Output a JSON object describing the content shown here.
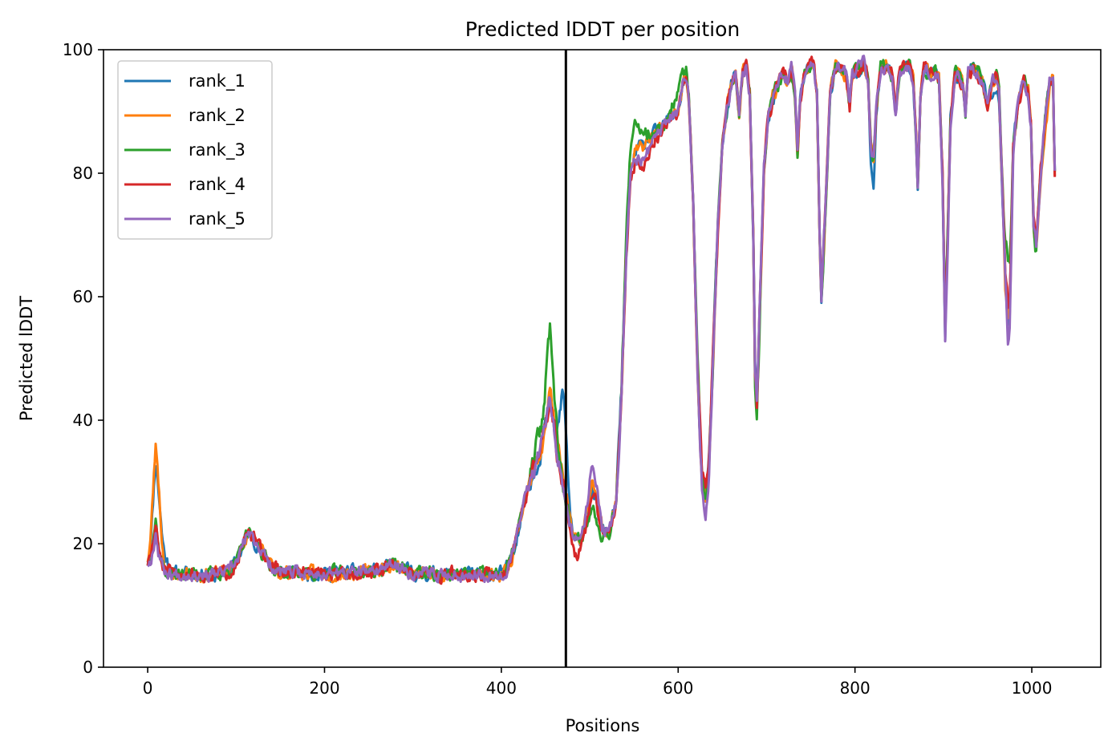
{
  "chart_data": {
    "type": "line",
    "title": "Predicted lDDT per position",
    "xlabel": "Positions",
    "ylabel": "Predicted lDDT",
    "xlim": [
      -50,
      1078
    ],
    "ylim": [
      0,
      100
    ],
    "xticks": [
      0,
      200,
      400,
      600,
      800,
      1000
    ],
    "yticks": [
      0,
      20,
      40,
      60,
      80,
      100
    ],
    "grid": false,
    "legend_position": "top-left",
    "vline": {
      "x": 473,
      "color": "#000000"
    },
    "n_positions": 1027,
    "base_profile": [
      [
        0,
        17
      ],
      [
        3,
        18
      ],
      [
        6,
        21
      ],
      [
        9,
        24
      ],
      [
        12,
        20
      ],
      [
        16,
        17
      ],
      [
        20,
        15.5
      ],
      [
        30,
        15
      ],
      [
        50,
        15.2
      ],
      [
        70,
        15
      ],
      [
        90,
        15.3
      ],
      [
        100,
        17
      ],
      [
        106,
        19
      ],
      [
        112,
        21.5
      ],
      [
        118,
        21
      ],
      [
        124,
        20
      ],
      [
        132,
        18
      ],
      [
        140,
        16.5
      ],
      [
        150,
        15.3
      ],
      [
        200,
        15.2
      ],
      [
        250,
        15.4
      ],
      [
        280,
        16.5
      ],
      [
        300,
        15.2
      ],
      [
        350,
        15
      ],
      [
        395,
        15
      ],
      [
        405,
        15.5
      ],
      [
        412,
        18
      ],
      [
        420,
        23
      ],
      [
        428,
        28
      ],
      [
        435,
        31
      ],
      [
        442,
        34
      ],
      [
        450,
        39
      ],
      [
        455,
        43
      ],
      [
        460,
        38
      ],
      [
        465,
        33
      ],
      [
        470,
        30
      ],
      [
        474,
        27
      ],
      [
        478,
        23
      ],
      [
        482,
        20
      ],
      [
        490,
        21
      ],
      [
        497,
        24
      ],
      [
        503,
        28
      ],
      [
        508,
        26
      ],
      [
        514,
        22
      ],
      [
        522,
        22
      ],
      [
        530,
        27
      ],
      [
        536,
        45
      ],
      [
        541,
        66
      ],
      [
        546,
        80
      ],
      [
        552,
        84
      ],
      [
        560,
        84
      ],
      [
        570,
        86
      ],
      [
        580,
        87
      ],
      [
        590,
        89
      ],
      [
        600,
        90
      ],
      [
        605,
        94
      ],
      [
        609,
        96
      ],
      [
        612,
        92
      ],
      [
        617,
        75
      ],
      [
        622,
        48
      ],
      [
        627,
        30
      ],
      [
        631,
        27
      ],
      [
        635,
        33
      ],
      [
        640,
        52
      ],
      [
        645,
        72
      ],
      [
        650,
        84
      ],
      [
        656,
        91
      ],
      [
        661,
        95
      ],
      [
        665,
        96
      ],
      [
        669,
        90
      ],
      [
        673,
        96
      ],
      [
        677,
        97
      ],
      [
        681,
        93
      ],
      [
        685,
        70
      ],
      [
        687,
        48
      ],
      [
        689,
        42
      ],
      [
        692,
        56
      ],
      [
        697,
        80
      ],
      [
        702,
        89
      ],
      [
        707,
        92
      ],
      [
        712,
        94
      ],
      [
        718,
        96
      ],
      [
        724,
        95
      ],
      [
        728,
        97
      ],
      [
        732,
        93
      ],
      [
        735,
        83
      ],
      [
        738,
        92
      ],
      [
        743,
        96
      ],
      [
        748,
        97
      ],
      [
        753,
        98
      ],
      [
        757,
        93
      ],
      [
        760,
        70
      ],
      [
        762,
        60
      ],
      [
        766,
        72
      ],
      [
        772,
        93
      ],
      [
        778,
        97
      ],
      [
        784,
        97
      ],
      [
        790,
        96
      ],
      [
        794,
        91
      ],
      [
        797,
        96
      ],
      [
        805,
        97
      ],
      [
        810,
        98
      ],
      [
        815,
        95
      ],
      [
        818,
        84
      ],
      [
        821,
        82
      ],
      [
        824,
        90
      ],
      [
        829,
        97
      ],
      [
        836,
        97
      ],
      [
        842,
        96
      ],
      [
        846,
        90
      ],
      [
        850,
        96
      ],
      [
        856,
        97
      ],
      [
        862,
        97
      ],
      [
        866,
        95
      ],
      [
        869,
        86
      ],
      [
        871,
        78
      ],
      [
        874,
        93
      ],
      [
        878,
        97
      ],
      [
        885,
        96
      ],
      [
        891,
        97
      ],
      [
        895,
        95
      ],
      [
        899,
        80
      ],
      [
        902,
        55
      ],
      [
        905,
        70
      ],
      [
        908,
        88
      ],
      [
        913,
        96
      ],
      [
        918,
        96
      ],
      [
        922,
        94
      ],
      [
        925,
        90
      ],
      [
        928,
        96
      ],
      [
        934,
        97
      ],
      [
        940,
        96
      ],
      [
        945,
        94
      ],
      [
        950,
        91
      ],
      [
        955,
        95
      ],
      [
        960,
        96
      ],
      [
        963,
        93
      ],
      [
        966,
        80
      ],
      [
        970,
        63
      ],
      [
        973,
        56
      ],
      [
        975,
        58
      ],
      [
        979,
        84
      ],
      [
        985,
        92
      ],
      [
        991,
        95
      ],
      [
        996,
        93
      ],
      [
        999,
        88
      ],
      [
        1002,
        72
      ],
      [
        1005,
        68
      ],
      [
        1010,
        80
      ],
      [
        1015,
        89
      ],
      [
        1020,
        95
      ],
      [
        1024,
        96
      ],
      [
        1026,
        80
      ]
    ],
    "series": [
      {
        "name": "rank_1",
        "color": "#1f77b4",
        "seed": 11,
        "noise": 1.0,
        "bumps": [
          [
            10,
            9,
            4
          ],
          [
            18,
            2,
            6
          ],
          [
            470,
            14,
            4
          ],
          [
            820,
            -4,
            3
          ],
          [
            958,
            -3,
            3
          ]
        ]
      },
      {
        "name": "rank_2",
        "color": "#ff7f0e",
        "seed": 23,
        "noise": 1.0,
        "bumps": [
          [
            10,
            12,
            4
          ],
          [
            460,
            2,
            8
          ],
          [
            505,
            3,
            6
          ],
          [
            1015,
            -3,
            4
          ]
        ]
      },
      {
        "name": "rank_3",
        "color": "#2ca02c",
        "seed": 37,
        "noise": 1.0,
        "bumps": [
          [
            455,
            12,
            5
          ],
          [
            440,
            3,
            4
          ],
          [
            505,
            -2,
            6
          ],
          [
            552,
            4,
            10
          ],
          [
            600,
            3,
            6
          ],
          [
            689,
            -3,
            3
          ],
          [
            973,
            10,
            3
          ]
        ]
      },
      {
        "name": "rank_4",
        "color": "#d62728",
        "seed": 51,
        "noise": 1.0,
        "bumps": [
          [
            8,
            -1,
            4
          ],
          [
            485,
            -2,
            8
          ],
          [
            560,
            -3,
            10
          ],
          [
            630,
            2,
            4
          ],
          [
            973,
            2,
            3
          ]
        ]
      },
      {
        "name": "rank_5",
        "color": "#9467bd",
        "seed": 67,
        "noise": 0.9,
        "bumps": [
          [
            8,
            -2,
            4
          ],
          [
            455,
            2,
            4
          ],
          [
            503,
            5,
            5
          ],
          [
            560,
            -2,
            10
          ],
          [
            630,
            -2,
            4
          ],
          [
            902,
            -2,
            3
          ],
          [
            975,
            -3,
            3
          ]
        ]
      }
    ]
  }
}
